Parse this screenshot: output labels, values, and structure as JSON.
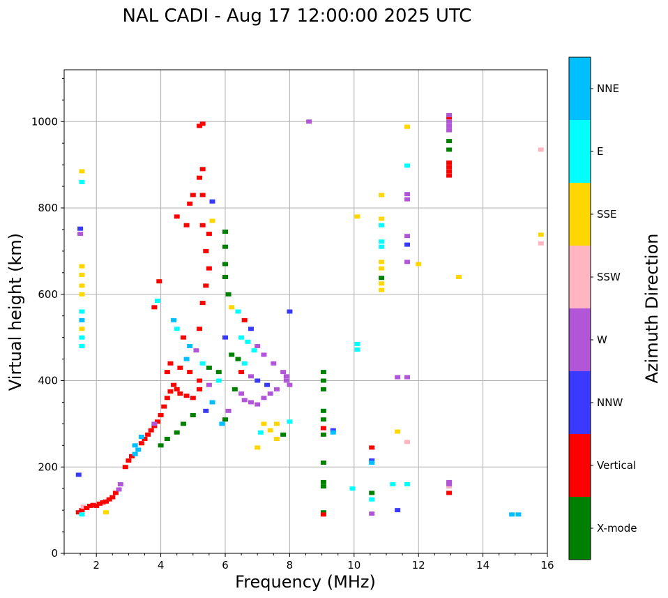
{
  "chart_data": {
    "type": "scatter",
    "title": "NAL CADI - Aug 17 12:00:00 2025 UTC",
    "xlabel": "Frequency (MHz)",
    "ylabel": "Virtual height (km)",
    "xlim": [
      1,
      16
    ],
    "ylim": [
      0,
      1120
    ],
    "xticks": [
      2,
      4,
      6,
      8,
      10,
      12,
      14,
      16
    ],
    "yticks": [
      0,
      200,
      400,
      600,
      800,
      1000
    ],
    "grid": true,
    "colorbar": {
      "label": "Azimuth Direction",
      "categories": [
        {
          "name": "X-mode",
          "color": "#008000"
        },
        {
          "name": "Vertical",
          "color": "#ff0000"
        },
        {
          "name": "NNW",
          "color": "#3a3aff"
        },
        {
          "name": "W",
          "color": "#b256d8"
        },
        {
          "name": "SSW",
          "color": "#ffb6c1"
        },
        {
          "name": "SSE",
          "color": "#ffd700"
        },
        {
          "name": "E",
          "color": "#00ffff"
        },
        {
          "name": "NNE",
          "color": "#00bfff"
        }
      ]
    },
    "points": [
      {
        "x": 1.45,
        "y": 95,
        "c": "Vertical"
      },
      {
        "x": 1.55,
        "y": 100,
        "c": "Vertical"
      },
      {
        "x": 1.6,
        "y": 108,
        "c": "SSW"
      },
      {
        "x": 1.7,
        "y": 105,
        "c": "Vertical"
      },
      {
        "x": 1.8,
        "y": 110,
        "c": "Vertical"
      },
      {
        "x": 1.9,
        "y": 112,
        "c": "Vertical"
      },
      {
        "x": 2.0,
        "y": 110,
        "c": "Vertical"
      },
      {
        "x": 2.1,
        "y": 115,
        "c": "Vertical"
      },
      {
        "x": 2.2,
        "y": 118,
        "c": "Vertical"
      },
      {
        "x": 2.3,
        "y": 120,
        "c": "Vertical"
      },
      {
        "x": 2.4,
        "y": 125,
        "c": "Vertical"
      },
      {
        "x": 2.5,
        "y": 130,
        "c": "Vertical"
      },
      {
        "x": 2.6,
        "y": 140,
        "c": "Vertical"
      },
      {
        "x": 2.7,
        "y": 148,
        "c": "W"
      },
      {
        "x": 2.75,
        "y": 160,
        "c": "W"
      },
      {
        "x": 2.3,
        "y": 95,
        "c": "SSE"
      },
      {
        "x": 1.55,
        "y": 90,
        "c": "E"
      },
      {
        "x": 1.45,
        "y": 182,
        "c": "NNW"
      },
      {
        "x": 1.55,
        "y": 480,
        "c": "E"
      },
      {
        "x": 1.55,
        "y": 500,
        "c": "E"
      },
      {
        "x": 1.55,
        "y": 520,
        "c": "SSE"
      },
      {
        "x": 1.55,
        "y": 540,
        "c": "NNE"
      },
      {
        "x": 1.55,
        "y": 560,
        "c": "E"
      },
      {
        "x": 1.55,
        "y": 600,
        "c": "SSE"
      },
      {
        "x": 1.55,
        "y": 620,
        "c": "SSE"
      },
      {
        "x": 1.55,
        "y": 645,
        "c": "SSE"
      },
      {
        "x": 1.55,
        "y": 665,
        "c": "SSE"
      },
      {
        "x": 1.5,
        "y": 740,
        "c": "W"
      },
      {
        "x": 1.5,
        "y": 752,
        "c": "NNW"
      },
      {
        "x": 1.55,
        "y": 860,
        "c": "E"
      },
      {
        "x": 1.55,
        "y": 885,
        "c": "SSE"
      },
      {
        "x": 2.9,
        "y": 200,
        "c": "Vertical"
      },
      {
        "x": 3.0,
        "y": 215,
        "c": "Vertical"
      },
      {
        "x": 3.1,
        "y": 225,
        "c": "Vertical"
      },
      {
        "x": 3.2,
        "y": 230,
        "c": "NNE"
      },
      {
        "x": 3.3,
        "y": 240,
        "c": "NNE"
      },
      {
        "x": 3.4,
        "y": 255,
        "c": "Vertical"
      },
      {
        "x": 3.5,
        "y": 265,
        "c": "Vertical"
      },
      {
        "x": 3.6,
        "y": 275,
        "c": "Vertical"
      },
      {
        "x": 3.7,
        "y": 285,
        "c": "Vertical"
      },
      {
        "x": 3.8,
        "y": 295,
        "c": "Vertical"
      },
      {
        "x": 3.9,
        "y": 305,
        "c": "Vertical"
      },
      {
        "x": 4.0,
        "y": 320,
        "c": "Vertical"
      },
      {
        "x": 4.1,
        "y": 340,
        "c": "Vertical"
      },
      {
        "x": 4.2,
        "y": 360,
        "c": "Vertical"
      },
      {
        "x": 4.3,
        "y": 375,
        "c": "Vertical"
      },
      {
        "x": 4.4,
        "y": 390,
        "c": "Vertical"
      },
      {
        "x": 4.5,
        "y": 380,
        "c": "Vertical"
      },
      {
        "x": 4.6,
        "y": 370,
        "c": "Vertical"
      },
      {
        "x": 4.8,
        "y": 365,
        "c": "Vertical"
      },
      {
        "x": 5.0,
        "y": 360,
        "c": "Vertical"
      },
      {
        "x": 4.2,
        "y": 420,
        "c": "Vertical"
      },
      {
        "x": 4.3,
        "y": 440,
        "c": "Vertical"
      },
      {
        "x": 4.6,
        "y": 430,
        "c": "Vertical"
      },
      {
        "x": 4.9,
        "y": 420,
        "c": "Vertical"
      },
      {
        "x": 5.2,
        "y": 400,
        "c": "Vertical"
      },
      {
        "x": 3.4,
        "y": 270,
        "c": "NNE"
      },
      {
        "x": 3.2,
        "y": 250,
        "c": "NNE"
      },
      {
        "x": 3.8,
        "y": 300,
        "c": "W"
      },
      {
        "x": 4.0,
        "y": 250,
        "c": "X-mode"
      },
      {
        "x": 4.2,
        "y": 265,
        "c": "X-mode"
      },
      {
        "x": 4.5,
        "y": 280,
        "c": "X-mode"
      },
      {
        "x": 4.7,
        "y": 300,
        "c": "X-mode"
      },
      {
        "x": 5.0,
        "y": 320,
        "c": "X-mode"
      },
      {
        "x": 5.4,
        "y": 330,
        "c": "NNW"
      },
      {
        "x": 5.6,
        "y": 350,
        "c": "NNE"
      },
      {
        "x": 4.8,
        "y": 450,
        "c": "NNE"
      },
      {
        "x": 4.9,
        "y": 480,
        "c": "NNE"
      },
      {
        "x": 5.1,
        "y": 470,
        "c": "W"
      },
      {
        "x": 5.3,
        "y": 440,
        "c": "E"
      },
      {
        "x": 5.5,
        "y": 430,
        "c": "X-mode"
      },
      {
        "x": 5.8,
        "y": 420,
        "c": "X-mode"
      },
      {
        "x": 5.2,
        "y": 380,
        "c": "Vertical"
      },
      {
        "x": 5.5,
        "y": 390,
        "c": "W"
      },
      {
        "x": 4.4,
        "y": 540,
        "c": "NNE"
      },
      {
        "x": 4.5,
        "y": 520,
        "c": "E"
      },
      {
        "x": 4.7,
        "y": 500,
        "c": "Vertical"
      },
      {
        "x": 5.2,
        "y": 520,
        "c": "Vertical"
      },
      {
        "x": 5.3,
        "y": 580,
        "c": "Vertical"
      },
      {
        "x": 5.4,
        "y": 620,
        "c": "Vertical"
      },
      {
        "x": 5.5,
        "y": 660,
        "c": "Vertical"
      },
      {
        "x": 5.4,
        "y": 700,
        "c": "Vertical"
      },
      {
        "x": 5.5,
        "y": 740,
        "c": "Vertical"
      },
      {
        "x": 5.6,
        "y": 770,
        "c": "SSE"
      },
      {
        "x": 5.3,
        "y": 760,
        "c": "Vertical"
      },
      {
        "x": 4.5,
        "y": 780,
        "c": "Vertical"
      },
      {
        "x": 4.8,
        "y": 760,
        "c": "Vertical"
      },
      {
        "x": 4.9,
        "y": 810,
        "c": "Vertical"
      },
      {
        "x": 5.0,
        "y": 830,
        "c": "Vertical"
      },
      {
        "x": 5.3,
        "y": 830,
        "c": "Vertical"
      },
      {
        "x": 5.6,
        "y": 815,
        "c": "NNW"
      },
      {
        "x": 5.2,
        "y": 870,
        "c": "Vertical"
      },
      {
        "x": 5.3,
        "y": 890,
        "c": "Vertical"
      },
      {
        "x": 5.2,
        "y": 990,
        "c": "Vertical"
      },
      {
        "x": 5.3,
        "y": 995,
        "c": "Vertical"
      },
      {
        "x": 3.95,
        "y": 630,
        "c": "Vertical"
      },
      {
        "x": 3.8,
        "y": 570,
        "c": "Vertical"
      },
      {
        "x": 3.9,
        "y": 585,
        "c": "E"
      },
      {
        "x": 6.0,
        "y": 745,
        "c": "X-mode"
      },
      {
        "x": 6.0,
        "y": 710,
        "c": "X-mode"
      },
      {
        "x": 6.0,
        "y": 670,
        "c": "X-mode"
      },
      {
        "x": 6.0,
        "y": 640,
        "c": "X-mode"
      },
      {
        "x": 6.1,
        "y": 600,
        "c": "X-mode"
      },
      {
        "x": 6.2,
        "y": 570,
        "c": "SSE"
      },
      {
        "x": 6.4,
        "y": 560,
        "c": "E"
      },
      {
        "x": 6.6,
        "y": 540,
        "c": "Vertical"
      },
      {
        "x": 6.8,
        "y": 520,
        "c": "NNW"
      },
      {
        "x": 6.5,
        "y": 500,
        "c": "E"
      },
      {
        "x": 6.7,
        "y": 490,
        "c": "E"
      },
      {
        "x": 7.0,
        "y": 480,
        "c": "W"
      },
      {
        "x": 6.9,
        "y": 470,
        "c": "E"
      },
      {
        "x": 6.2,
        "y": 460,
        "c": "X-mode"
      },
      {
        "x": 6.4,
        "y": 450,
        "c": "X-mode"
      },
      {
        "x": 6.6,
        "y": 440,
        "c": "E"
      },
      {
        "x": 7.2,
        "y": 460,
        "c": "W"
      },
      {
        "x": 7.5,
        "y": 440,
        "c": "W"
      },
      {
        "x": 7.8,
        "y": 420,
        "c": "W"
      },
      {
        "x": 6.5,
        "y": 420,
        "c": "Vertical"
      },
      {
        "x": 6.8,
        "y": 410,
        "c": "W"
      },
      {
        "x": 7.0,
        "y": 400,
        "c": "NNW"
      },
      {
        "x": 7.3,
        "y": 390,
        "c": "NNW"
      },
      {
        "x": 7.6,
        "y": 380,
        "c": "W"
      },
      {
        "x": 6.3,
        "y": 380,
        "c": "X-mode"
      },
      {
        "x": 6.5,
        "y": 370,
        "c": "W"
      },
      {
        "x": 6.6,
        "y": 355,
        "c": "W"
      },
      {
        "x": 6.8,
        "y": 350,
        "c": "W"
      },
      {
        "x": 7.0,
        "y": 345,
        "c": "W"
      },
      {
        "x": 7.2,
        "y": 360,
        "c": "W"
      },
      {
        "x": 7.4,
        "y": 370,
        "c": "W"
      },
      {
        "x": 7.9,
        "y": 400,
        "c": "W"
      },
      {
        "x": 8.0,
        "y": 390,
        "c": "W"
      },
      {
        "x": 7.9,
        "y": 410,
        "c": "W"
      },
      {
        "x": 6.1,
        "y": 330,
        "c": "W"
      },
      {
        "x": 6.0,
        "y": 310,
        "c": "X-mode"
      },
      {
        "x": 5.9,
        "y": 300,
        "c": "NNE"
      },
      {
        "x": 5.8,
        "y": 400,
        "c": "E"
      },
      {
        "x": 6.0,
        "y": 500,
        "c": "NNW"
      },
      {
        "x": 7.2,
        "y": 300,
        "c": "SSE"
      },
      {
        "x": 7.4,
        "y": 285,
        "c": "SSE"
      },
      {
        "x": 7.1,
        "y": 280,
        "c": "E"
      },
      {
        "x": 7.6,
        "y": 265,
        "c": "SSE"
      },
      {
        "x": 7.8,
        "y": 275,
        "c": "X-mode"
      },
      {
        "x": 7.6,
        "y": 300,
        "c": "SSE"
      },
      {
        "x": 7.0,
        "y": 245,
        "c": "SSE"
      },
      {
        "x": 8.0,
        "y": 305,
        "c": "E"
      },
      {
        "x": 8.0,
        "y": 560,
        "c": "NNW"
      },
      {
        "x": 8.6,
        "y": 1000,
        "c": "W"
      },
      {
        "x": 9.05,
        "y": 420,
        "c": "X-mode"
      },
      {
        "x": 9.05,
        "y": 400,
        "c": "X-mode"
      },
      {
        "x": 9.05,
        "y": 380,
        "c": "X-mode"
      },
      {
        "x": 9.05,
        "y": 330,
        "c": "X-mode"
      },
      {
        "x": 9.05,
        "y": 310,
        "c": "X-mode"
      },
      {
        "x": 9.05,
        "y": 290,
        "c": "Vertical"
      },
      {
        "x": 9.05,
        "y": 275,
        "c": "X-mode"
      },
      {
        "x": 9.05,
        "y": 210,
        "c": "X-mode"
      },
      {
        "x": 9.05,
        "y": 165,
        "c": "X-mode"
      },
      {
        "x": 9.05,
        "y": 155,
        "c": "X-mode"
      },
      {
        "x": 9.05,
        "y": 95,
        "c": "X-mode"
      },
      {
        "x": 9.05,
        "y": 90,
        "c": "Vertical"
      },
      {
        "x": 9.35,
        "y": 285,
        "c": "NNW"
      },
      {
        "x": 9.35,
        "y": 280,
        "c": "NNE"
      },
      {
        "x": 9.95,
        "y": 150,
        "c": "E"
      },
      {
        "x": 10.1,
        "y": 485,
        "c": "E"
      },
      {
        "x": 10.1,
        "y": 472,
        "c": "E"
      },
      {
        "x": 10.1,
        "y": 780,
        "c": "SSE"
      },
      {
        "x": 10.55,
        "y": 245,
        "c": "Vertical"
      },
      {
        "x": 10.55,
        "y": 215,
        "c": "NNW"
      },
      {
        "x": 10.55,
        "y": 210,
        "c": "NNE"
      },
      {
        "x": 10.55,
        "y": 140,
        "c": "X-mode"
      },
      {
        "x": 10.55,
        "y": 125,
        "c": "E"
      },
      {
        "x": 10.55,
        "y": 92,
        "c": "W"
      },
      {
        "x": 10.85,
        "y": 610,
        "c": "SSE"
      },
      {
        "x": 10.85,
        "y": 625,
        "c": "SSE"
      },
      {
        "x": 10.85,
        "y": 638,
        "c": "X-mode"
      },
      {
        "x": 10.85,
        "y": 660,
        "c": "SSE"
      },
      {
        "x": 10.85,
        "y": 675,
        "c": "SSE"
      },
      {
        "x": 10.85,
        "y": 710,
        "c": "E"
      },
      {
        "x": 10.85,
        "y": 722,
        "c": "E"
      },
      {
        "x": 10.85,
        "y": 760,
        "c": "E"
      },
      {
        "x": 10.85,
        "y": 775,
        "c": "SSE"
      },
      {
        "x": 10.85,
        "y": 830,
        "c": "SSE"
      },
      {
        "x": 11.2,
        "y": 160,
        "c": "E"
      },
      {
        "x": 11.35,
        "y": 100,
        "c": "NNW"
      },
      {
        "x": 11.35,
        "y": 282,
        "c": "SSE"
      },
      {
        "x": 11.35,
        "y": 408,
        "c": "W"
      },
      {
        "x": 11.65,
        "y": 408,
        "c": "W"
      },
      {
        "x": 11.65,
        "y": 258,
        "c": "SSW"
      },
      {
        "x": 11.65,
        "y": 160,
        "c": "E"
      },
      {
        "x": 11.65,
        "y": 675,
        "c": "W"
      },
      {
        "x": 11.65,
        "y": 715,
        "c": "NNW"
      },
      {
        "x": 11.65,
        "y": 735,
        "c": "W"
      },
      {
        "x": 11.65,
        "y": 820,
        "c": "W"
      },
      {
        "x": 11.65,
        "y": 832,
        "c": "W"
      },
      {
        "x": 11.65,
        "y": 898,
        "c": "E"
      },
      {
        "x": 11.65,
        "y": 988,
        "c": "SSE"
      },
      {
        "x": 12.0,
        "y": 670,
        "c": "SSE"
      },
      {
        "x": 12.95,
        "y": 140,
        "c": "Vertical"
      },
      {
        "x": 12.95,
        "y": 155,
        "c": "SSW"
      },
      {
        "x": 12.95,
        "y": 160,
        "c": "W"
      },
      {
        "x": 12.95,
        "y": 165,
        "c": "W"
      },
      {
        "x": 12.95,
        "y": 875,
        "c": "Vertical"
      },
      {
        "x": 12.95,
        "y": 885,
        "c": "Vertical"
      },
      {
        "x": 12.95,
        "y": 895,
        "c": "Vertical"
      },
      {
        "x": 12.95,
        "y": 905,
        "c": "Vertical"
      },
      {
        "x": 12.95,
        "y": 935,
        "c": "X-mode"
      },
      {
        "x": 12.95,
        "y": 955,
        "c": "X-mode"
      },
      {
        "x": 12.95,
        "y": 980,
        "c": "W"
      },
      {
        "x": 12.95,
        "y": 990,
        "c": "W"
      },
      {
        "x": 12.95,
        "y": 1000,
        "c": "W"
      },
      {
        "x": 12.95,
        "y": 1010,
        "c": "Vertical"
      },
      {
        "x": 12.95,
        "y": 1015,
        "c": "W"
      },
      {
        "x": 13.25,
        "y": 640,
        "c": "SSE"
      },
      {
        "x": 14.9,
        "y": 90,
        "c": "NNE"
      },
      {
        "x": 15.1,
        "y": 90,
        "c": "NNE"
      },
      {
        "x": 15.8,
        "y": 718,
        "c": "SSW"
      },
      {
        "x": 15.8,
        "y": 738,
        "c": "SSE"
      },
      {
        "x": 15.8,
        "y": 935,
        "c": "SSW"
      }
    ]
  }
}
